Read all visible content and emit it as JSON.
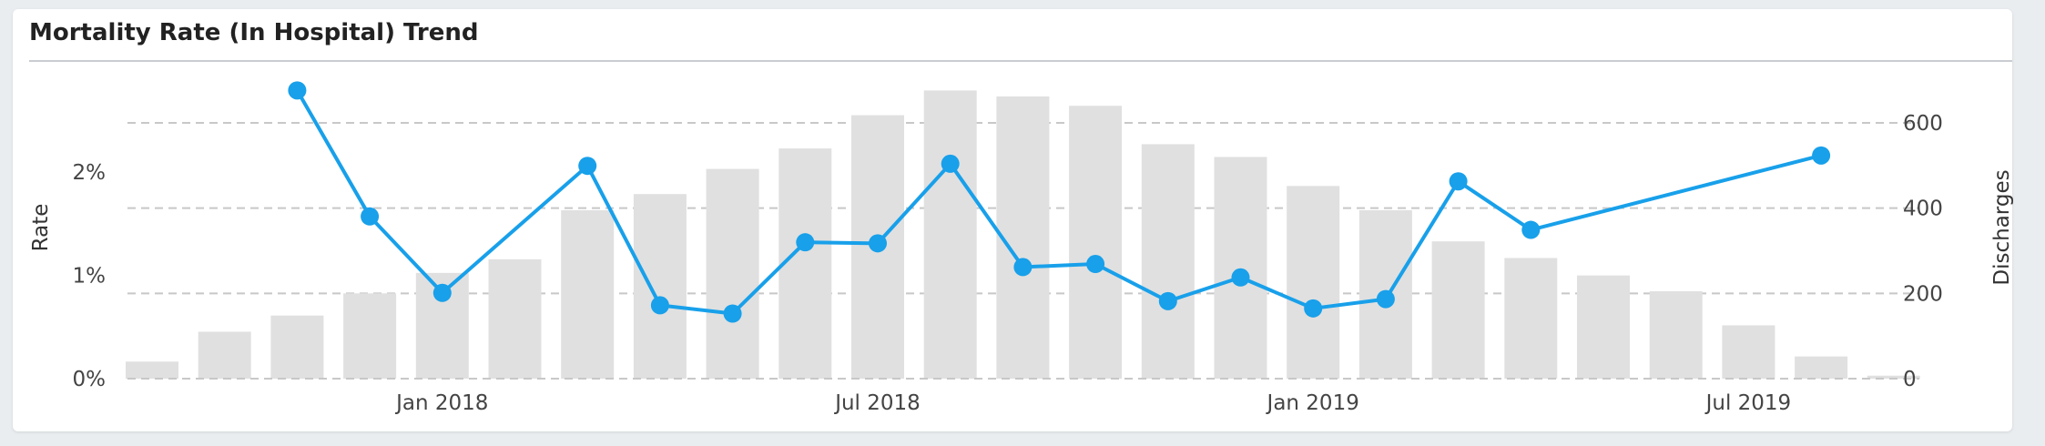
{
  "header": {
    "title": "Mortality Rate (In Hospital) Trend"
  },
  "chart_data": {
    "type": "bar+line",
    "title": "Mortality Rate (In Hospital) Trend",
    "x": [
      "2017-09",
      "2017-10",
      "2017-11",
      "2017-12",
      "2018-01",
      "2018-02",
      "2018-03",
      "2018-04",
      "2018-05",
      "2018-06",
      "2018-07",
      "2018-08",
      "2018-09",
      "2018-10",
      "2018-11",
      "2018-12",
      "2019-01",
      "2019-02",
      "2019-03",
      "2019-04",
      "2019-05",
      "2019-06",
      "2019-07",
      "2019-08",
      "2019-09"
    ],
    "x_tick_labels": [
      {
        "x": "2018-01",
        "label": "Jan 2018"
      },
      {
        "x": "2018-07",
        "label": "Jul 2018"
      },
      {
        "x": "2019-01",
        "label": "Jan 2019"
      },
      {
        "x": "2019-07",
        "label": "Jul 2019"
      }
    ],
    "series": [
      {
        "name": "Discharges",
        "type": "bar",
        "axis": "right",
        "color": "#e0e0e0",
        "values": [
          40,
          110,
          148,
          200,
          248,
          280,
          395,
          433,
          492,
          540,
          618,
          676,
          662,
          640,
          550,
          520,
          452,
          395,
          322,
          283,
          242,
          205,
          125,
          52,
          7
        ]
      },
      {
        "name": "Rate",
        "type": "line",
        "axis": "left",
        "color": "#18a0ea",
        "points": [
          {
            "x": "2017-11",
            "y": 2.79
          },
          {
            "x": "2017-12",
            "y": 1.57
          },
          {
            "x": "2018-01",
            "y": 0.83
          },
          {
            "x": "2018-03",
            "y": 2.06
          },
          {
            "x": "2018-04",
            "y": 0.71
          },
          {
            "x": "2018-05",
            "y": 0.63
          },
          {
            "x": "2018-06",
            "y": 1.32
          },
          {
            "x": "2018-07",
            "y": 1.31
          },
          {
            "x": "2018-08",
            "y": 2.08
          },
          {
            "x": "2018-09",
            "y": 1.08
          },
          {
            "x": "2018-10",
            "y": 1.11
          },
          {
            "x": "2018-11",
            "y": 0.75
          },
          {
            "x": "2018-12",
            "y": 0.98
          },
          {
            "x": "2019-01",
            "y": 0.68
          },
          {
            "x": "2019-02",
            "y": 0.77
          },
          {
            "x": "2019-03",
            "y": 1.91
          },
          {
            "x": "2019-04",
            "y": 1.44
          },
          {
            "x": "2019-08",
            "y": 2.16
          }
        ]
      }
    ],
    "y_left": {
      "label": "Rate",
      "ticks": [
        "0%",
        "1%",
        "2%"
      ],
      "tick_values": [
        0,
        1,
        2
      ],
      "ylim": [
        0,
        3.0
      ]
    },
    "y_right": {
      "label": "Discharges",
      "ticks": [
        "0",
        "200",
        "400",
        "600"
      ],
      "tick_values": [
        0,
        200,
        400,
        600
      ],
      "ylim": [
        0,
        720
      ]
    },
    "grid": true,
    "legend": "none"
  }
}
